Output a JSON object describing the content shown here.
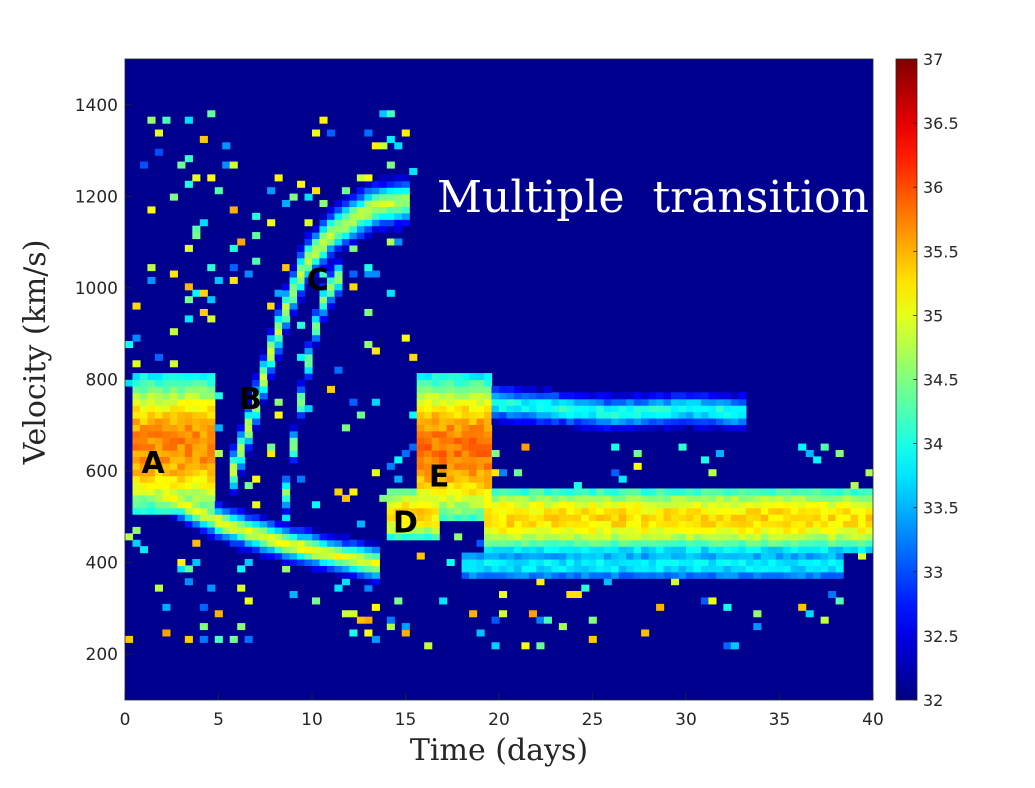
{
  "chart_data": {
    "type": "heatmap",
    "colormap": "jet",
    "background_color": "#00008f",
    "xlabel": "Time (days)",
    "ylabel": "Velocity (km/s)",
    "xlim": [
      0,
      40
    ],
    "ylim": [
      100,
      1500
    ],
    "xticks": [
      0,
      5,
      10,
      15,
      20,
      25,
      30,
      35,
      40
    ],
    "yticks": [
      200,
      400,
      600,
      800,
      1000,
      1200,
      1400
    ],
    "color_range": [
      32,
      37
    ],
    "colorbar_ticks": [
      "32",
      "32.5",
      "33",
      "33.5",
      "34",
      "34.5",
      "35",
      "35.5",
      "36",
      "36.5",
      "37"
    ],
    "grid": false,
    "annotation": "Multiple  transition",
    "regions": [
      {
        "label": "A",
        "x": 1.5,
        "y": 620
      },
      {
        "label": "B",
        "x": 6.7,
        "y": 760
      },
      {
        "label": "C",
        "x": 10.3,
        "y": 1020
      },
      {
        "label": "D",
        "x": 15.0,
        "y": 490
      },
      {
        "label": "E",
        "x": 16.8,
        "y": 590
      }
    ],
    "features": [
      {
        "name": "A",
        "kind": "band",
        "x_start": 0.2,
        "x_end": 4.5,
        "v_low": 500,
        "v_high": 800,
        "peak_value": 35.7
      },
      {
        "name": "A-decay",
        "kind": "curve",
        "points": [
          [
            2,
            540
          ],
          [
            5,
            480
          ],
          [
            8,
            440
          ],
          [
            11,
            410
          ],
          [
            13.5,
            390
          ]
        ],
        "half_width": 30,
        "peak_value": 35.0
      },
      {
        "name": "B",
        "kind": "curve",
        "points": [
          [
            5.3,
            560
          ],
          [
            6.5,
            700
          ],
          [
            7.5,
            840
          ],
          [
            8.5,
            960
          ],
          [
            9.5,
            1050
          ],
          [
            11,
            1120
          ],
          [
            13,
            1170
          ],
          [
            15,
            1185
          ]
        ],
        "half_width": 40,
        "peak_value": 34.8
      },
      {
        "name": "C",
        "kind": "curve",
        "points": [
          [
            8.3,
            520
          ],
          [
            9,
            700
          ],
          [
            9.8,
            880
          ],
          [
            10.5,
            980
          ],
          [
            11.5,
            1030
          ]
        ],
        "half_width": 30,
        "peak_value": 34.6
      },
      {
        "name": "D",
        "kind": "band",
        "x_start": 13.7,
        "x_end": 16.5,
        "v_low": 440,
        "v_high": 560,
        "peak_value": 35.3
      },
      {
        "name": "E",
        "kind": "band",
        "x_start": 15.3,
        "x_end": 19.5,
        "v_low": 480,
        "v_high": 800,
        "peak_value": 35.8
      },
      {
        "name": "E-tail",
        "kind": "band",
        "x_start": 19,
        "x_end": 40,
        "v_low": 420,
        "v_high": 560,
        "peak_value": 35.3
      },
      {
        "name": "E-upper",
        "kind": "curve",
        "points": [
          [
            17,
            760
          ],
          [
            20,
            740
          ],
          [
            23,
            730
          ],
          [
            26,
            720
          ],
          [
            30,
            730
          ],
          [
            33,
            720
          ]
        ],
        "half_width": 30,
        "peak_value": 34.0
      },
      {
        "name": "E-lower",
        "kind": "band",
        "x_start": 18,
        "x_end": 38,
        "v_low": 360,
        "v_high": 420,
        "peak_value": 33.8
      }
    ]
  }
}
